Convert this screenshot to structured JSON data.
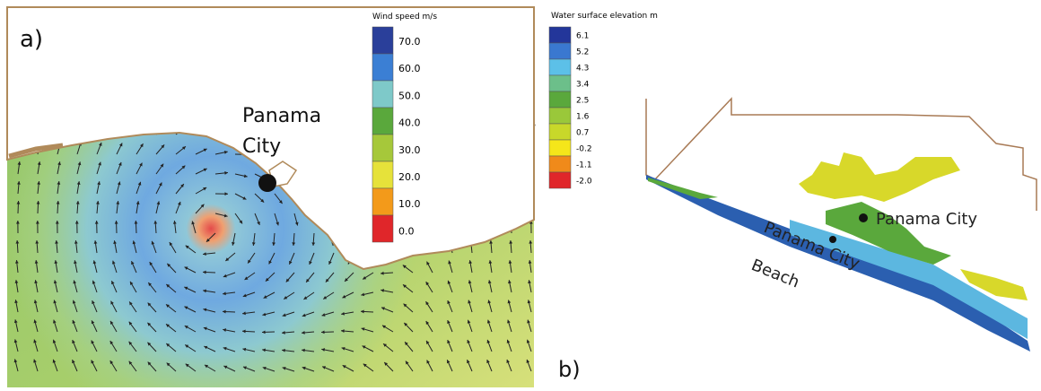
{
  "panel_a": {
    "label": "a)",
    "place": [
      "Panama",
      "City"
    ],
    "legend": {
      "title": "Wind speed m/s",
      "labels": [
        "70.0",
        "60.0",
        "50.0",
        "40.0",
        "30.0",
        "20.0",
        "10.0",
        "0.0"
      ]
    }
  },
  "panel_b": {
    "label": "b)",
    "places": [
      "Panama City",
      "Panama City",
      "Beach"
    ],
    "legend": {
      "title": "Water surface elevation m",
      "labels": [
        "6.1",
        "5.2",
        "4.3",
        "3.4",
        "2.5",
        "1.6",
        "0.7",
        "-0.2",
        "-1.1",
        "-2.0"
      ]
    }
  }
}
